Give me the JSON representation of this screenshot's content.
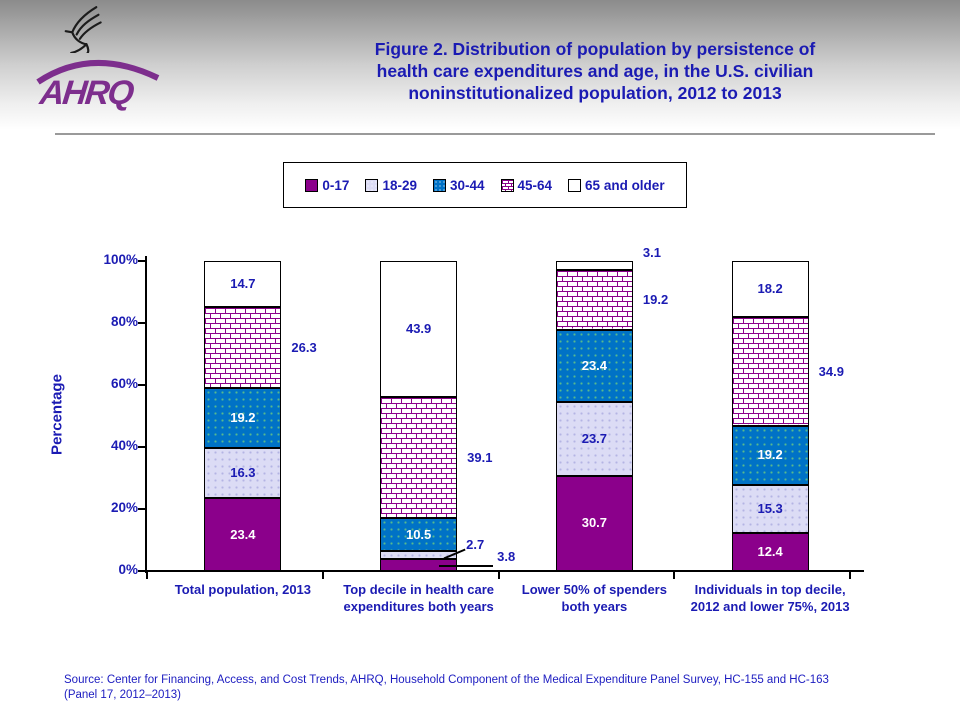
{
  "logo": {
    "org_text": "AHRQ"
  },
  "title": {
    "lines": [
      "Figure 2. Distribution of population by persistence of",
      "health care expenditures and age, in the U.S. civilian",
      "noninstitutionalized population, 2012 to 2013"
    ]
  },
  "legend": {
    "items": [
      {
        "label": "0-17",
        "fill": "#8B008B",
        "pattern": "solid"
      },
      {
        "label": "18-29",
        "fill": "#DCDCF5",
        "pattern": "dots"
      },
      {
        "label": "30-44",
        "fill": "#0072C6",
        "pattern": "dots"
      },
      {
        "label": "45-64",
        "fill": "#FFFFFF",
        "pattern": "brick"
      },
      {
        "label": "65 and older",
        "fill": "#FFFFFF",
        "pattern": "solid"
      }
    ]
  },
  "chart_data": {
    "type": "bar",
    "stacked": true,
    "title": "Figure 2. Distribution of population by persistence of health care expenditures and age, in the U.S. civilian noninstitutionalized population, 2012 to 2013",
    "xlabel": "",
    "ylabel": "Percentage",
    "ylim": [
      0,
      100
    ],
    "ytick_labels": [
      "0%",
      "20%",
      "40%",
      "60%",
      "80%",
      "100%"
    ],
    "grid": false,
    "legend_position": "top",
    "categories": [
      "Total population, 2013",
      "Top decile in health care expenditures both years",
      "Lower 50% of spenders both years",
      "Individuals in top decile, 2012 and lower 75%, 2013"
    ],
    "category_label_lines": [
      [
        "Total population, 2013"
      ],
      [
        "Top decile in health care",
        "expenditures both years"
      ],
      [
        "Lower 50% of spenders",
        "both years"
      ],
      [
        "Individuals in top decile,",
        "2012 and lower 75%, 2013"
      ]
    ],
    "series": [
      {
        "name": "0-17",
        "values": [
          23.4,
          3.8,
          30.7,
          12.4
        ]
      },
      {
        "name": "18-29",
        "values": [
          16.3,
          2.7,
          23.7,
          15.3
        ]
      },
      {
        "name": "30-44",
        "values": [
          19.2,
          10.5,
          23.4,
          19.2
        ]
      },
      {
        "name": "45-64",
        "values": [
          26.3,
          39.1,
          19.2,
          34.9
        ]
      },
      {
        "name": "65 and older",
        "values": [
          14.7,
          43.9,
          3.1,
          18.2
        ]
      }
    ],
    "series_styles": [
      {
        "name": "0-17",
        "fill": "#8B008B",
        "pattern": "solid",
        "label_color": "#FFFFFF"
      },
      {
        "name": "18-29",
        "fill": "#DCDCF5",
        "pattern": "dots",
        "dot_color": "#b4b4e4",
        "label_color": "#1B1BB3"
      },
      {
        "name": "30-44",
        "fill": "#0072C6",
        "pattern": "dots",
        "dot_color": "#58b98e",
        "label_color": "#FFFFFF"
      },
      {
        "name": "45-64",
        "fill": "#FFFFFF",
        "pattern": "brick",
        "brick_color": "#8B008B",
        "label_color": "#1B1BB3"
      },
      {
        "name": "65 and older",
        "fill": "#FFFFFF",
        "pattern": "solid",
        "label_color": "#1B1BB3"
      }
    ],
    "label_placements": [
      [
        "inside",
        "inside",
        "inside",
        "right",
        "inside"
      ],
      [
        "leader",
        "leader",
        "inside",
        "right",
        "inside"
      ],
      [
        "inside",
        "inside",
        "inside",
        "right",
        "right"
      ],
      [
        "inside",
        "inside",
        "inside",
        "right",
        "inside"
      ]
    ]
  },
  "colors": {
    "accent_text": "#1B1BB3",
    "footer_text": "#1C1CC0",
    "ahrq_purple": "#7D2E8D",
    "axis": "#000000"
  },
  "footer": {
    "line1": "Source: Center for Financing, Access, and Cost Trends, AHRQ, Household Component of the Medical Expenditure Panel Survey, HC-155 and HC-163",
    "line2": "(Panel 17, 2012–2013)"
  }
}
